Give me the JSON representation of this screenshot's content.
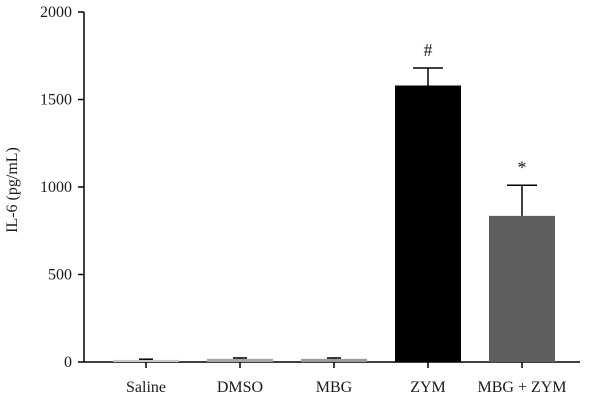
{
  "chart_data": {
    "type": "bar",
    "categories": [
      "Saline",
      "DMSO",
      "MBG",
      "ZYM",
      "MBG + ZYM"
    ],
    "values": [
      12,
      18,
      18,
      1580,
      835
    ],
    "errors": [
      4,
      5,
      5,
      100,
      175
    ],
    "annotations": [
      "",
      "",
      "",
      "#",
      "*"
    ],
    "bar_colors": [
      "#c8c8c8",
      "#a6a6a6",
      "#9b9b9b",
      "#000000",
      "#5e5f60"
    ],
    "title": "",
    "xlabel": "",
    "ylabel": "IL-6 (pg/mL)",
    "ylim": [
      0,
      2000
    ],
    "yticks": [
      0,
      500,
      1000,
      1500,
      2000
    ],
    "ytick_labels": [
      "0",
      "500",
      "1000",
      "1500",
      "2000"
    ],
    "grid": false
  }
}
